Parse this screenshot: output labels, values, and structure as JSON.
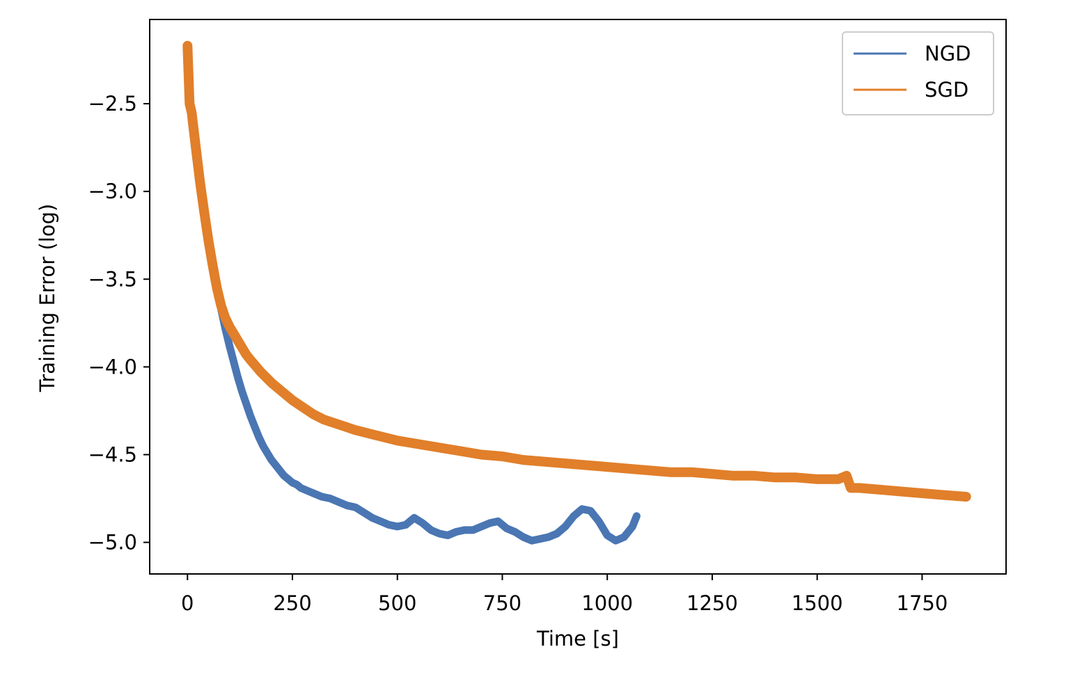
{
  "chart_data": {
    "type": "line",
    "title": "",
    "xlabel": "Time [s]",
    "ylabel": "Training Error (log)",
    "xlim": [
      -90,
      1950
    ],
    "ylim": [
      -5.18,
      -2.02
    ],
    "xticks": [
      0,
      250,
      500,
      750,
      1000,
      1250,
      1500,
      1750
    ],
    "xtick_labels": [
      "0",
      "250",
      "500",
      "750",
      "1000",
      "1250",
      "1500",
      "1750"
    ],
    "yticks": [
      -2.5,
      -3.0,
      -3.5,
      -4.0,
      -4.5,
      -5.0
    ],
    "ytick_labels": [
      "−2.5",
      "−3.0",
      "−3.5",
      "−4.0",
      "−4.5",
      "−5.0"
    ],
    "grid": false,
    "legend_position": "top-right",
    "series": [
      {
        "name": "NGD",
        "color": "#4a76b3",
        "x": [
          0,
          5,
          10,
          20,
          30,
          40,
          50,
          60,
          70,
          80,
          90,
          100,
          110,
          120,
          130,
          140,
          150,
          160,
          170,
          180,
          190,
          200,
          210,
          220,
          230,
          240,
          250,
          260,
          270,
          280,
          290,
          300,
          320,
          340,
          360,
          380,
          400,
          420,
          440,
          460,
          480,
          500,
          520,
          540,
          560,
          580,
          600,
          620,
          640,
          660,
          680,
          700,
          720,
          740,
          760,
          780,
          800,
          820,
          840,
          860,
          880,
          900,
          920,
          940,
          960,
          980,
          1000,
          1020,
          1040,
          1060,
          1070
        ],
        "y": [
          -2.17,
          -2.45,
          -2.6,
          -2.8,
          -2.98,
          -3.15,
          -3.3,
          -3.43,
          -3.55,
          -3.67,
          -3.78,
          -3.88,
          -3.97,
          -4.06,
          -4.14,
          -4.21,
          -4.28,
          -4.34,
          -4.4,
          -4.45,
          -4.49,
          -4.53,
          -4.56,
          -4.59,
          -4.62,
          -4.64,
          -4.66,
          -4.67,
          -4.69,
          -4.7,
          -4.71,
          -4.72,
          -4.74,
          -4.75,
          -4.77,
          -4.79,
          -4.8,
          -4.83,
          -4.86,
          -4.88,
          -4.9,
          -4.91,
          -4.9,
          -4.86,
          -4.89,
          -4.93,
          -4.95,
          -4.96,
          -4.94,
          -4.93,
          -4.93,
          -4.91,
          -4.89,
          -4.88,
          -4.92,
          -4.94,
          -4.97,
          -4.99,
          -4.98,
          -4.97,
          -4.95,
          -4.91,
          -4.85,
          -4.81,
          -4.82,
          -4.88,
          -4.96,
          -4.99,
          -4.97,
          -4.91,
          -4.85
        ]
      },
      {
        "name": "SGD",
        "color": "#e17f2a",
        "x": [
          0,
          5,
          10,
          20,
          30,
          40,
          50,
          60,
          70,
          80,
          90,
          100,
          110,
          120,
          130,
          140,
          150,
          175,
          200,
          225,
          250,
          275,
          300,
          325,
          350,
          375,
          400,
          450,
          500,
          550,
          600,
          650,
          700,
          750,
          800,
          850,
          900,
          950,
          1000,
          1050,
          1100,
          1150,
          1200,
          1250,
          1300,
          1350,
          1400,
          1450,
          1500,
          1550,
          1570,
          1580,
          1600,
          1650,
          1700,
          1750,
          1800,
          1855
        ],
        "y": [
          -2.17,
          -2.5,
          -2.55,
          -2.75,
          -2.95,
          -3.12,
          -3.28,
          -3.42,
          -3.55,
          -3.65,
          -3.72,
          -3.77,
          -3.81,
          -3.85,
          -3.89,
          -3.93,
          -3.96,
          -4.03,
          -4.09,
          -4.14,
          -4.19,
          -4.23,
          -4.27,
          -4.3,
          -4.32,
          -4.34,
          -4.36,
          -4.39,
          -4.42,
          -4.44,
          -4.46,
          -4.48,
          -4.5,
          -4.51,
          -4.53,
          -4.54,
          -4.55,
          -4.56,
          -4.57,
          -4.58,
          -4.59,
          -4.6,
          -4.6,
          -4.61,
          -4.62,
          -4.62,
          -4.63,
          -4.63,
          -4.64,
          -4.64,
          -4.62,
          -4.69,
          -4.69,
          -4.7,
          -4.71,
          -4.72,
          -4.73,
          -4.74
        ]
      }
    ]
  }
}
